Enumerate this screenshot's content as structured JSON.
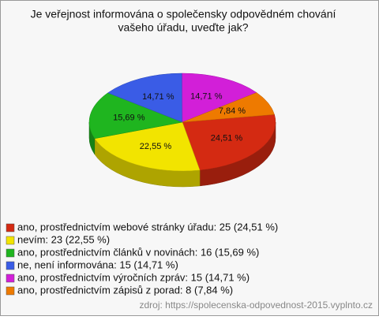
{
  "chart_data": {
    "type": "pie",
    "title": [
      "Je veřejnost informována o společensky odpovědném chování",
      "vašeho úřadu, uveďte jak?"
    ],
    "categories": [
      "ano, prostřednictvím webové stránky úřadu: 25 (24,51 %)",
      "nevím: 23 (22,55 %)",
      "ano, prostřednictvím článků v novinách: 16 (15,69 %)",
      "ne, není informována: 15 (14,71 %)",
      "ano, prostřednictvím výročních zpráv: 15 (14,71 %)",
      "ano, prostřednictvím zápisů z porad: 8 (7,84 %)"
    ],
    "values": [
      24.51,
      22.55,
      15.69,
      14.71,
      14.71,
      7.84
    ],
    "value_labels": [
      "24,51 %",
      "22,55 %",
      "15,69 %",
      "14,71 %",
      "14,71 %",
      "7,84 %"
    ],
    "colors": [
      "#d42a12",
      "#f2e400",
      "#1fb51f",
      "#3a5ce6",
      "#d21fd8",
      "#ee7a00"
    ],
    "legend": "bottom-left",
    "source": "zdroj: https://spolecenska-odpovednost-2015.vyplnto.cz"
  }
}
